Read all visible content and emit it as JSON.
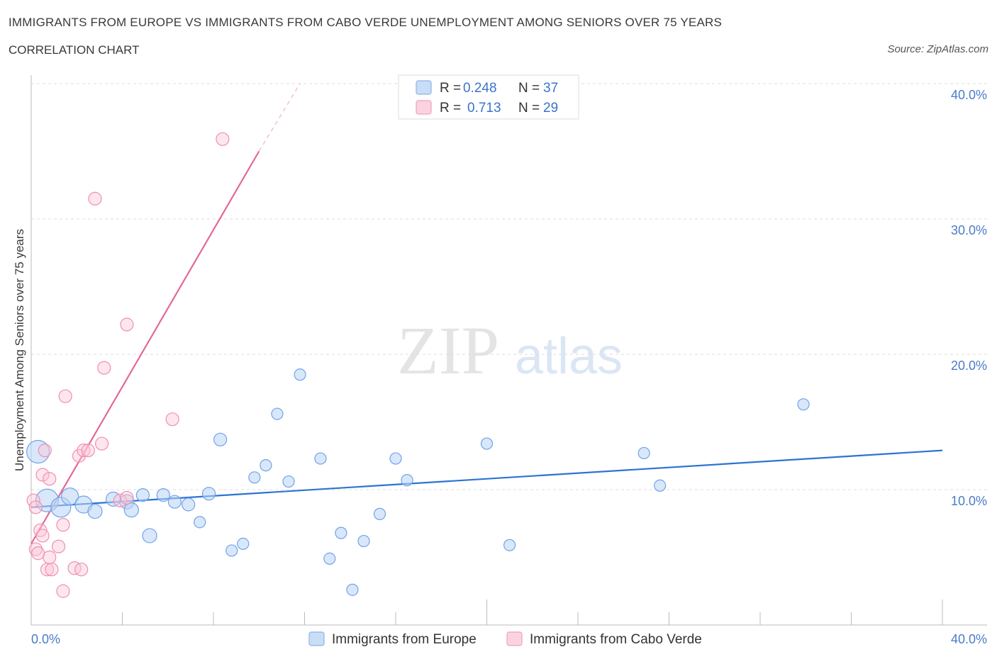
{
  "header": {
    "title": "IMMIGRANTS FROM EUROPE VS IMMIGRANTS FROM CABO VERDE UNEMPLOYMENT AMONG SENIORS OVER 75 YEARS",
    "subtitle": "CORRELATION CHART",
    "source": "Source: ZipAtlas.com"
  },
  "watermark": {
    "zip": "ZIP",
    "atlas": "atlas"
  },
  "legend": {
    "r_label": "R =",
    "n_label": "N =",
    "rows": [
      {
        "r": "0.248",
        "n": "37",
        "color": "#6fa3e8"
      },
      {
        "r": "0.713",
        "n": "29",
        "color": "#f08fb0"
      }
    ]
  },
  "chart_data": {
    "type": "scatter",
    "title": "IMMIGRANTS FROM EUROPE VS IMMIGRANTS FROM CABO VERDE UNEMPLOYMENT AMONG SENIORS OVER 75 YEARS",
    "subtitle": "CORRELATION CHART",
    "xlabel": "",
    "ylabel": "Unemployment Among Seniors over 75 years",
    "xlim": [
      0,
      40
    ],
    "ylim": [
      0,
      40
    ],
    "x_tick_labels": [
      "0.0%",
      "40.0%"
    ],
    "y_ticks": [
      10,
      20,
      30,
      40
    ],
    "y_tick_labels": [
      "10.0%",
      "20.0%",
      "30.0%",
      "40.0%"
    ],
    "grid": "horizontal dashed",
    "legend_position": "top-center",
    "series": [
      {
        "name": "Immigrants from Europe",
        "color": "#6fa3e8",
        "points": [
          [
            0.3,
            12.8,
            16
          ],
          [
            0.7,
            9.2,
            16
          ],
          [
            1.3,
            8.7,
            14
          ],
          [
            1.7,
            9.5,
            12
          ],
          [
            2.3,
            8.9,
            12
          ],
          [
            2.8,
            8.4,
            10
          ],
          [
            3.6,
            9.3,
            10
          ],
          [
            4.2,
            9.1,
            10
          ],
          [
            4.4,
            8.5,
            10
          ],
          [
            4.9,
            9.6,
            9
          ],
          [
            5.2,
            6.6,
            10
          ],
          [
            5.8,
            9.6,
            9
          ],
          [
            6.3,
            9.1,
            9
          ],
          [
            6.9,
            8.9,
            9
          ],
          [
            7.4,
            7.6,
            8
          ],
          [
            7.8,
            9.7,
            9
          ],
          [
            8.3,
            13.7,
            9
          ],
          [
            8.8,
            5.5,
            8
          ],
          [
            9.3,
            6.0,
            8
          ],
          [
            9.8,
            10.9,
            8
          ],
          [
            10.3,
            11.8,
            8
          ],
          [
            10.8,
            15.6,
            8
          ],
          [
            11.3,
            10.6,
            8
          ],
          [
            11.8,
            18.5,
            8
          ],
          [
            12.7,
            12.3,
            8
          ],
          [
            13.1,
            4.9,
            8
          ],
          [
            13.6,
            6.8,
            8
          ],
          [
            14.1,
            2.6,
            8
          ],
          [
            14.6,
            6.2,
            8
          ],
          [
            15.3,
            8.2,
            8
          ],
          [
            16.0,
            12.3,
            8
          ],
          [
            16.5,
            10.7,
            8
          ],
          [
            20.0,
            13.4,
            8
          ],
          [
            21.0,
            5.9,
            8
          ],
          [
            26.9,
            12.7,
            8
          ],
          [
            27.6,
            10.3,
            8
          ],
          [
            33.9,
            16.3,
            8
          ]
        ],
        "trend": [
          [
            0.0,
            8.7
          ],
          [
            40.0,
            12.9
          ]
        ]
      },
      {
        "name": "Immigrants from Cabo Verde",
        "color": "#f08fb0",
        "points": [
          [
            0.1,
            9.2,
            9
          ],
          [
            0.2,
            8.7,
            9
          ],
          [
            0.2,
            5.6,
            9
          ],
          [
            0.3,
            5.3,
            9
          ],
          [
            0.4,
            7.0,
            9
          ],
          [
            0.5,
            6.6,
            9
          ],
          [
            0.5,
            11.1,
            9
          ],
          [
            0.6,
            12.9,
            9
          ],
          [
            0.7,
            4.1,
            9
          ],
          [
            0.8,
            5.0,
            9
          ],
          [
            0.8,
            10.8,
            9
          ],
          [
            0.9,
            4.1,
            9
          ],
          [
            1.2,
            5.8,
            9
          ],
          [
            1.4,
            2.5,
            9
          ],
          [
            1.4,
            7.4,
            9
          ],
          [
            1.5,
            16.9,
            9
          ],
          [
            1.9,
            4.2,
            9
          ],
          [
            2.1,
            12.5,
            9
          ],
          [
            2.2,
            4.1,
            9
          ],
          [
            2.3,
            12.9,
            9
          ],
          [
            2.5,
            12.9,
            9
          ],
          [
            2.8,
            31.5,
            9
          ],
          [
            3.1,
            13.4,
            9
          ],
          [
            3.2,
            19.0,
            9
          ],
          [
            3.9,
            9.2,
            9
          ],
          [
            4.2,
            9.4,
            9
          ],
          [
            4.2,
            22.2,
            9
          ],
          [
            6.2,
            15.2,
            9
          ],
          [
            8.4,
            35.9,
            9
          ]
        ],
        "trend": [
          [
            0.0,
            6.0
          ],
          [
            10.0,
            35.0
          ]
        ],
        "trend_extension": [
          [
            10.0,
            35.0
          ],
          [
            11.8,
            40.0
          ]
        ]
      }
    ]
  },
  "bottom_legend": [
    {
      "label": "Immigrants from Europe",
      "color": "#6fa3e8"
    },
    {
      "label": "Immigrants from Cabo Verde",
      "color": "#f08fb0"
    }
  ]
}
